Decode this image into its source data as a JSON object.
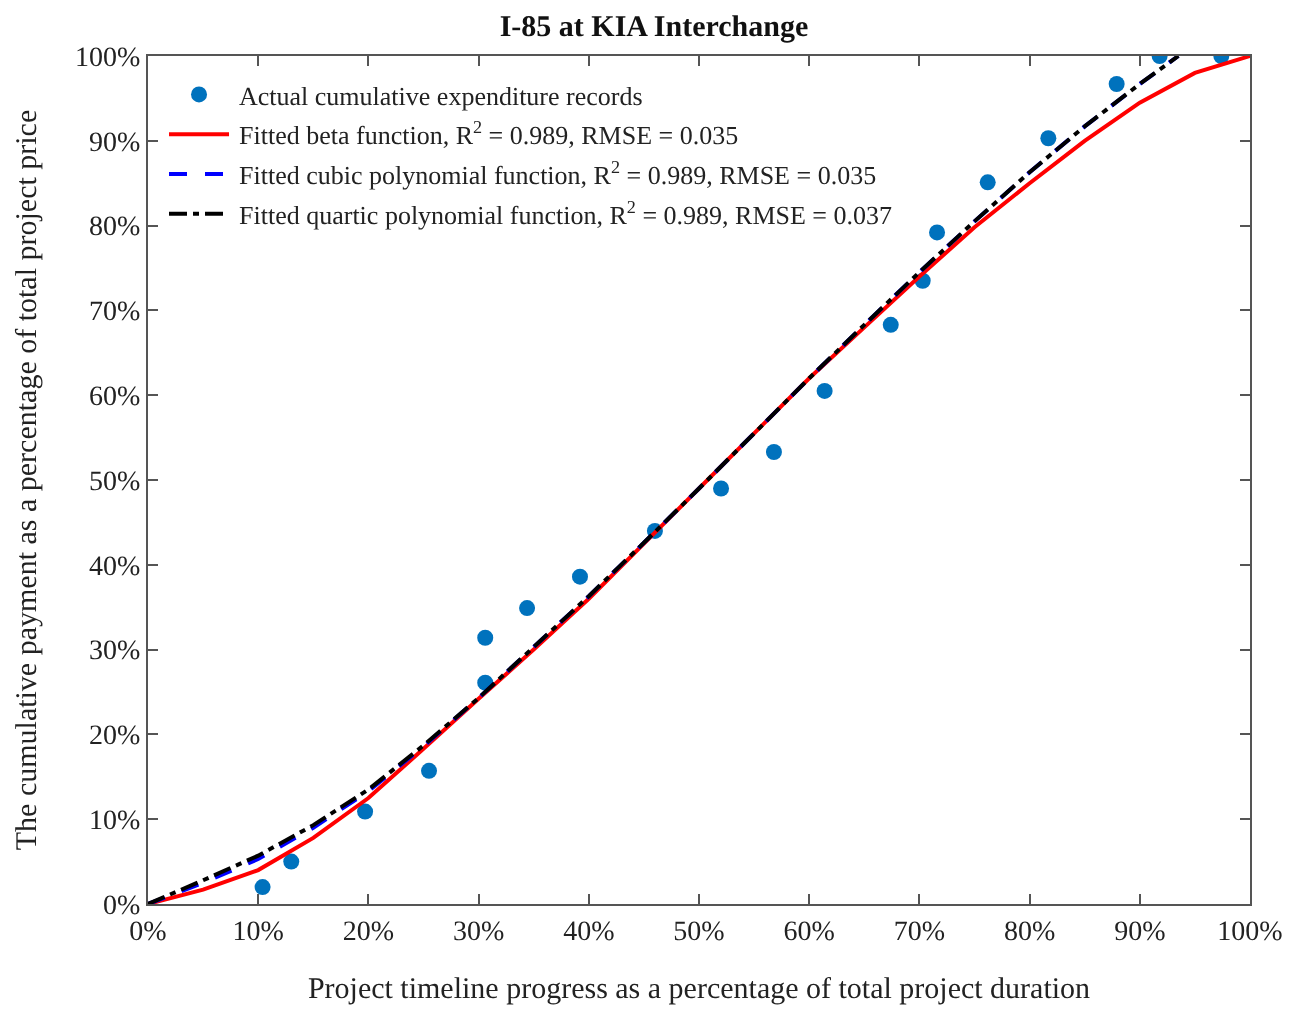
{
  "chart_data": {
    "type": "scatter",
    "title": "I-85 at KIA Interchange",
    "xlabel": "Project timeline progress as a percentage of total project duration",
    "ylabel": "The cumulative payment as a percentage of total project price",
    "xlim": [
      0,
      100
    ],
    "ylim": [
      0,
      100
    ],
    "xticks": [
      {
        "value": 0,
        "label": "0%"
      },
      {
        "value": 10,
        "label": "10%"
      },
      {
        "value": 20,
        "label": "20%"
      },
      {
        "value": 30,
        "label": "30%"
      },
      {
        "value": 40,
        "label": "40%"
      },
      {
        "value": 50,
        "label": "50%"
      },
      {
        "value": 60,
        "label": "60%"
      },
      {
        "value": 70,
        "label": "70%"
      },
      {
        "value": 80,
        "label": "80%"
      },
      {
        "value": 90,
        "label": "90%"
      },
      {
        "value": 100,
        "label": "100%"
      }
    ],
    "yticks": [
      {
        "value": 0,
        "label": "0%"
      },
      {
        "value": 10,
        "label": "10%"
      },
      {
        "value": 20,
        "label": "20%"
      },
      {
        "value": 30,
        "label": "30%"
      },
      {
        "value": 40,
        "label": "40%"
      },
      {
        "value": 50,
        "label": "50%"
      },
      {
        "value": 60,
        "label": "60%"
      },
      {
        "value": 70,
        "label": "70%"
      },
      {
        "value": 80,
        "label": "80%"
      },
      {
        "value": 90,
        "label": "90%"
      },
      {
        "value": 100,
        "label": "100%"
      }
    ],
    "legend": "top left",
    "series": [
      {
        "name": "Actual cumulative expenditure records",
        "marker": "circle",
        "color": "#0072bd",
        "x": [
          10.4,
          13.0,
          19.7,
          25.5,
          30.6,
          30.6,
          34.4,
          39.2,
          46.0,
          52.0,
          56.8,
          61.4,
          67.4,
          70.3,
          71.6,
          76.2,
          81.7,
          87.9,
          91.8,
          97.4
        ],
        "values": [
          2.0,
          5.0,
          10.9,
          15.7,
          26.1,
          31.4,
          34.9,
          38.6,
          44.0,
          49.0,
          53.3,
          60.5,
          68.3,
          73.5,
          79.2,
          85.1,
          90.3,
          96.7,
          100,
          100
        ]
      },
      {
        "name": "Fitted beta function, R$^{2}$ = 0.989, RMSE = 0.035",
        "type": "line",
        "line_style": "solid",
        "color": "#ff0000",
        "x": [
          0,
          5,
          10,
          15,
          20,
          25,
          30,
          35,
          40,
          45,
          50,
          55,
          60,
          65,
          70,
          75,
          80,
          85,
          90,
          95,
          100
        ],
        "values": [
          0,
          1.7,
          4.0,
          7.8,
          12.5,
          18.3,
          24.2,
          30,
          36,
          42.5,
          49,
          55.5,
          62,
          68,
          74,
          79.8,
          85,
          90,
          94.5,
          98,
          100
        ]
      },
      {
        "name": "Fitted cubic polynomial function, R$^{2}$ = 0.989, RMSE = 0.035",
        "type": "line",
        "line_style": "dashed",
        "color": "#0000ff",
        "x": [
          0,
          5,
          10,
          15,
          20,
          25,
          30,
          35,
          40,
          45,
          50,
          55,
          60,
          65,
          70,
          75,
          80,
          85,
          90,
          93.5
        ],
        "values": [
          0,
          2.5,
          5.3,
          9,
          13.3,
          18.6,
          24.3,
          30.3,
          36.3,
          42.6,
          49,
          55.5,
          62,
          68.3,
          74.5,
          80.5,
          86.3,
          91.7,
          96.7,
          100
        ]
      },
      {
        "name": "Fitted quartic polynomial function, R$^{2}$ = 0.989, RMSE = 0.037",
        "type": "line",
        "line_style": "dashdot",
        "color": "#000000",
        "x": [
          0,
          5,
          10,
          15,
          20,
          25,
          30,
          35,
          40,
          45,
          50,
          55,
          60,
          65,
          70,
          75,
          80,
          85,
          90,
          93.5
        ],
        "values": [
          0,
          2.8,
          5.7,
          9.3,
          13.5,
          18.7,
          24.3,
          30.3,
          36.3,
          42.6,
          49,
          55.5,
          62,
          68.3,
          74.5,
          80.5,
          86.3,
          91.7,
          96.7,
          100
        ]
      }
    ]
  }
}
